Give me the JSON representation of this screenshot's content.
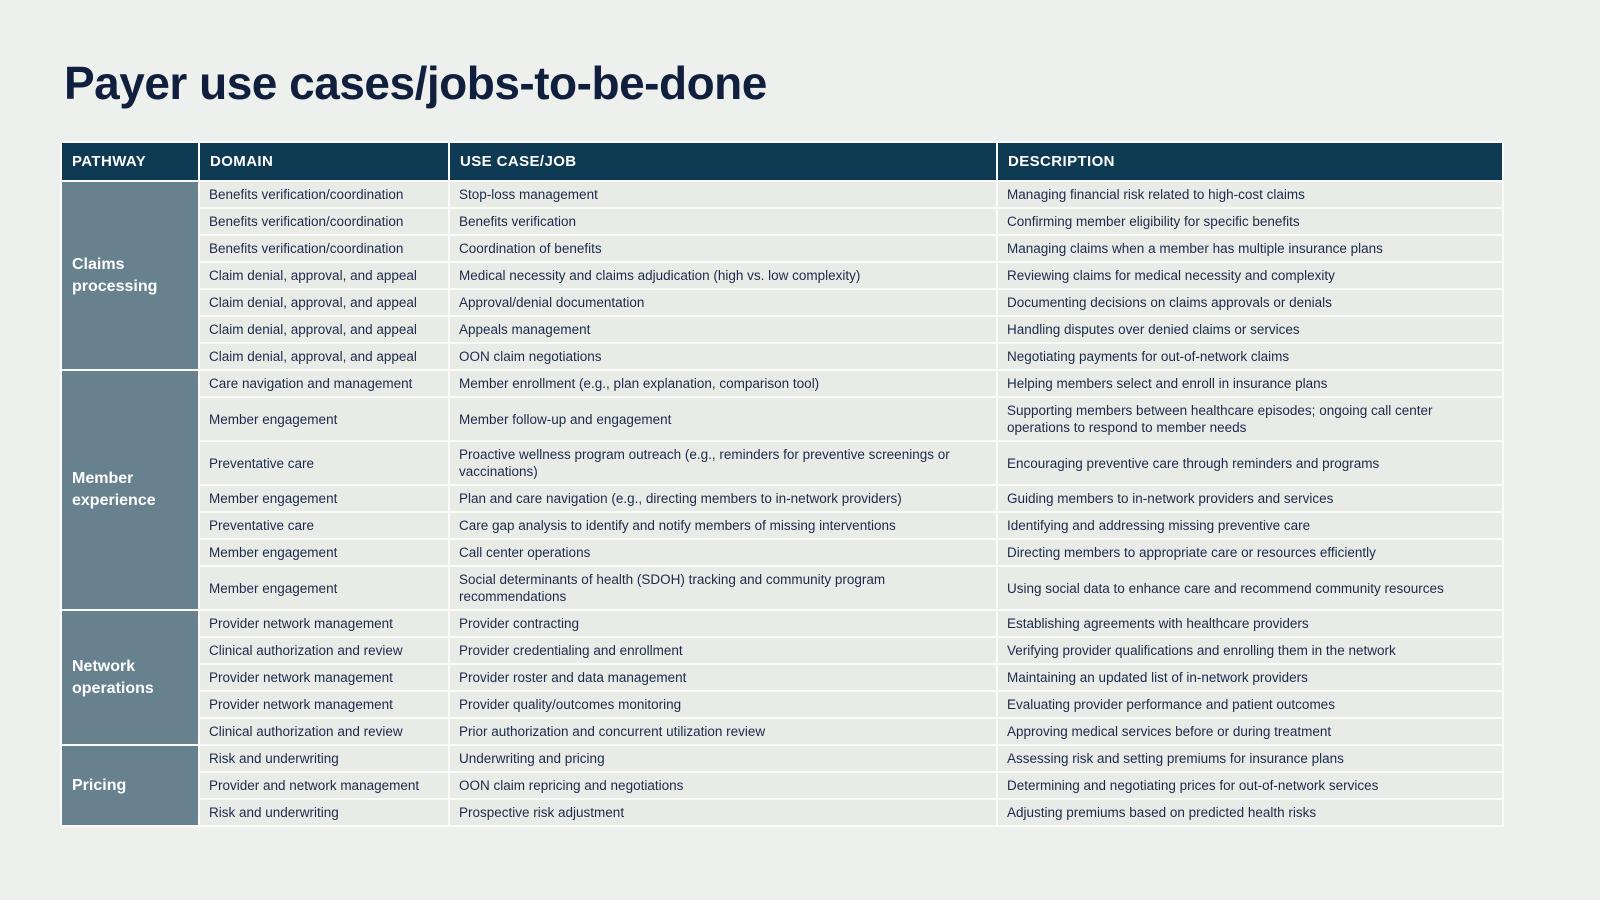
{
  "page": {
    "title": "Payer use cases/jobs-to-be-done"
  },
  "colors": {
    "page_background": "#eef0ed",
    "header_background": "#0e3a53",
    "pathway_background": "#67818f",
    "row_background": "#e9ebe7",
    "cell_text": "#1b2a4c",
    "title_text": "#101f3e",
    "header_text": "#ffffff"
  },
  "table": {
    "headers": [
      "PATHWAY",
      "DOMAIN",
      "USE CASE/JOB",
      "DESCRIPTION"
    ],
    "groups": [
      {
        "pathway": "Claims processing",
        "rows": [
          {
            "domain": "Benefits verification/coordination",
            "use_case": "Stop-loss management",
            "description": "Managing financial risk related to high-cost claims"
          },
          {
            "domain": "Benefits verification/coordination",
            "use_case": "Benefits verification",
            "description": "Confirming member eligibility for specific benefits"
          },
          {
            "domain": "Benefits verification/coordination",
            "use_case": "Coordination of benefits",
            "description": "Managing claims when a member has multiple insurance plans"
          },
          {
            "domain": "Claim denial, approval, and appeal",
            "use_case": "Medical necessity and claims adjudication (high vs. low complexity)",
            "description": "Reviewing claims for medical necessity and complexity"
          },
          {
            "domain": "Claim denial, approval, and appeal",
            "use_case": "Approval/denial documentation",
            "description": "Documenting decisions on claims approvals or denials"
          },
          {
            "domain": "Claim denial, approval, and appeal",
            "use_case": "Appeals management",
            "description": "Handling disputes over denied claims or services"
          },
          {
            "domain": "Claim denial, approval, and appeal",
            "use_case": "OON claim negotiations",
            "description": "Negotiating payments for out-of-network claims"
          }
        ]
      },
      {
        "pathway": "Member experience",
        "rows": [
          {
            "domain": "Care navigation and management",
            "use_case": "Member enrollment (e.g., plan explanation, comparison tool)",
            "description": "Helping members select and enroll in insurance plans"
          },
          {
            "domain": "Member engagement",
            "use_case": "Member follow-up and engagement",
            "description": "Supporting members between healthcare episodes; ongoing call center operations to respond to member needs"
          },
          {
            "domain": "Preventative care",
            "use_case": "Proactive wellness program outreach (e.g., reminders for preventive screenings or vaccinations)",
            "description": "Encouraging preventive care through reminders and programs"
          },
          {
            "domain": "Member engagement",
            "use_case": "Plan and care navigation (e.g., directing members to in-network providers)",
            "description": "Guiding members to in-network providers and services"
          },
          {
            "domain": "Preventative care",
            "use_case": "Care gap analysis to identify and notify members of missing interventions",
            "description": "Identifying and addressing missing preventive care"
          },
          {
            "domain": "Member engagement",
            "use_case": "Call center operations",
            "description": "Directing members to appropriate care or resources efficiently"
          },
          {
            "domain": "Member engagement",
            "use_case": "Social determinants of health (SDOH) tracking and community program recommendations",
            "description": "Using social data to enhance care and recommend community resources"
          }
        ]
      },
      {
        "pathway": "Network operations",
        "rows": [
          {
            "domain": "Provider network management",
            "use_case": "Provider contracting",
            "description": "Establishing agreements with healthcare providers"
          },
          {
            "domain": "Clinical authorization and review",
            "use_case": "Provider credentialing and enrollment",
            "description": "Verifying provider qualifications and enrolling them in the network"
          },
          {
            "domain": "Provider network management",
            "use_case": "Provider roster and data management",
            "description": "Maintaining an updated list of in-network providers"
          },
          {
            "domain": "Provider network management",
            "use_case": "Provider quality/outcomes monitoring",
            "description": "Evaluating provider performance and patient outcomes"
          },
          {
            "domain": "Clinical authorization and review",
            "use_case": "Prior authorization and concurrent utilization review",
            "description": "Approving medical services before or during treatment"
          }
        ]
      },
      {
        "pathway": "Pricing",
        "rows": [
          {
            "domain": "Risk and underwriting",
            "use_case": "Underwriting and pricing",
            "description": "Assessing risk and setting premiums for insurance plans"
          },
          {
            "domain": "Provider and network management",
            "use_case": "OON claim repricing and negotiations",
            "description": "Determining and negotiating prices for out-of-network services"
          },
          {
            "domain": "Risk and underwriting",
            "use_case": "Prospective risk adjustment",
            "description": "Adjusting premiums based on predicted health risks"
          }
        ]
      }
    ]
  }
}
